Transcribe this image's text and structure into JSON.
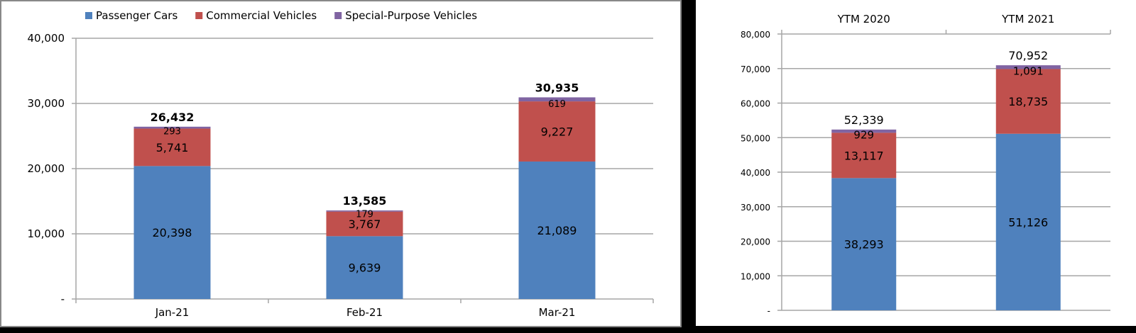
{
  "colors": {
    "passenger": "#4f81bd",
    "commercial": "#c0504d",
    "special": "#8064a2",
    "grid": "#a6a6a6"
  },
  "chart_data": [
    {
      "type": "bar",
      "stacked": true,
      "title": "",
      "legend": {
        "placement": "top",
        "entries": [
          "Passenger Cars",
          "Commercial Vehicles",
          "Special-Purpose Vehicles"
        ]
      },
      "categories": [
        "Jan-21",
        "Feb-21",
        "Mar-21"
      ],
      "series": [
        {
          "name": "Passenger Cars",
          "values": [
            20398,
            9639,
            21089
          ],
          "labels": [
            "20,398",
            "9,639",
            "21,089"
          ]
        },
        {
          "name": "Commercial Vehicles",
          "values": [
            5741,
            3767,
            9227
          ],
          "labels": [
            "5,741",
            "3,767",
            "9,227"
          ]
        },
        {
          "name": "Special-Purpose Vehicles",
          "values": [
            293,
            179,
            619
          ],
          "labels": [
            "293",
            "179",
            "619"
          ]
        }
      ],
      "totals": [
        "26,432",
        "13,585",
        "30,935"
      ],
      "ylim": [
        0,
        40000
      ],
      "yticks": [
        "-",
        "10,000",
        "20,000",
        "30,000",
        "40,000"
      ],
      "grid": true
    },
    {
      "type": "bar",
      "stacked": true,
      "title": "",
      "categories": [
        "YTM 2020",
        "YTM 2021"
      ],
      "series": [
        {
          "name": "Passenger Cars",
          "values": [
            38293,
            51126
          ],
          "labels": [
            "38,293",
            "51,126"
          ]
        },
        {
          "name": "Commercial Vehicles",
          "values": [
            13117,
            18735
          ],
          "labels": [
            "13,117",
            "18,735"
          ]
        },
        {
          "name": "Special-Purpose Vehicles",
          "values": [
            929,
            1091
          ],
          "labels": [
            "929",
            "1,091"
          ]
        }
      ],
      "totals": [
        "52,339",
        "70,952"
      ],
      "ylim": [
        0,
        80000
      ],
      "yticks": [
        "-",
        "10,000",
        "20,000",
        "30,000",
        "40,000",
        "50,000",
        "60,000",
        "70,000",
        "80,000"
      ],
      "grid": true
    }
  ]
}
